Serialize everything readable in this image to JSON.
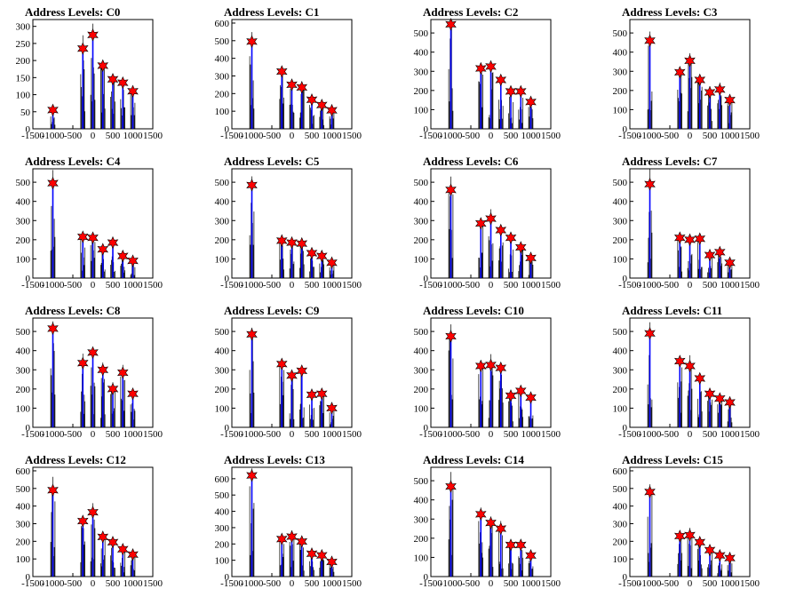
{
  "chart_data": [
    {
      "type": "histogram",
      "title": "Address Levels: C0",
      "xlim": [
        -1500,
        1500
      ],
      "ylim": [
        0,
        320
      ],
      "yticks": [
        0,
        50,
        100,
        150,
        200,
        250,
        300
      ],
      "xticks": [
        -1500,
        -1000,
        -500,
        0,
        500,
        1000,
        1500
      ],
      "peaks": [
        {
          "x": -1000,
          "y": 55
        },
        {
          "x": -250,
          "y": 235
        },
        {
          "x": 0,
          "y": 275
        },
        {
          "x": 250,
          "y": 185
        },
        {
          "x": 500,
          "y": 145
        },
        {
          "x": 750,
          "y": 135
        },
        {
          "x": 1000,
          "y": 110
        }
      ]
    },
    {
      "type": "histogram",
      "title": "Address Levels: C1",
      "xlim": [
        -1500,
        1500
      ],
      "ylim": [
        0,
        620
      ],
      "yticks": [
        0,
        100,
        200,
        300,
        400,
        500,
        600
      ],
      "xticks": [
        -1500,
        -1000,
        -500,
        0,
        500,
        1000,
        1500
      ],
      "peaks": [
        {
          "x": -1000,
          "y": 495
        },
        {
          "x": -250,
          "y": 325
        },
        {
          "x": 0,
          "y": 250
        },
        {
          "x": 250,
          "y": 235
        },
        {
          "x": 500,
          "y": 165
        },
        {
          "x": 750,
          "y": 135
        },
        {
          "x": 1000,
          "y": 105
        }
      ]
    },
    {
      "type": "histogram",
      "title": "Address Levels: C2",
      "xlim": [
        -1500,
        1500
      ],
      "ylim": [
        0,
        570
      ],
      "yticks": [
        0,
        100,
        200,
        300,
        400,
        500
      ],
      "xticks": [
        -1500,
        -1000,
        -500,
        0,
        500,
        1000,
        1500
      ],
      "peaks": [
        {
          "x": -1000,
          "y": 545
        },
        {
          "x": -250,
          "y": 315
        },
        {
          "x": 0,
          "y": 325
        },
        {
          "x": 250,
          "y": 255
        },
        {
          "x": 500,
          "y": 195
        },
        {
          "x": 750,
          "y": 195
        },
        {
          "x": 1000,
          "y": 140
        }
      ]
    },
    {
      "type": "histogram",
      "title": "Address Levels: C3",
      "xlim": [
        -1500,
        1500
      ],
      "ylim": [
        0,
        570
      ],
      "yticks": [
        0,
        100,
        200,
        300,
        400,
        500
      ],
      "xticks": [
        -1500,
        -1000,
        -500,
        0,
        500,
        1000,
        1500
      ],
      "peaks": [
        {
          "x": -1000,
          "y": 460
        },
        {
          "x": -250,
          "y": 295
        },
        {
          "x": 0,
          "y": 355
        },
        {
          "x": 250,
          "y": 255
        },
        {
          "x": 500,
          "y": 190
        },
        {
          "x": 750,
          "y": 205
        },
        {
          "x": 1000,
          "y": 150
        }
      ]
    },
    {
      "type": "histogram",
      "title": "Address Levels: C4",
      "xlim": [
        -1500,
        1500
      ],
      "ylim": [
        0,
        570
      ],
      "yticks": [
        0,
        100,
        200,
        300,
        400,
        500
      ],
      "xticks": [
        -1500,
        -1000,
        -500,
        0,
        500,
        1000,
        1500
      ],
      "peaks": [
        {
          "x": -1000,
          "y": 495
        },
        {
          "x": -250,
          "y": 215
        },
        {
          "x": 0,
          "y": 210
        },
        {
          "x": 250,
          "y": 150
        },
        {
          "x": 500,
          "y": 185
        },
        {
          "x": 750,
          "y": 115
        },
        {
          "x": 1000,
          "y": 90
        }
      ]
    },
    {
      "type": "histogram",
      "title": "Address Levels: C5",
      "xlim": [
        -1500,
        1500
      ],
      "ylim": [
        0,
        570
      ],
      "yticks": [
        0,
        100,
        200,
        300,
        400,
        500
      ],
      "xticks": [
        -1500,
        -1000,
        -500,
        0,
        500,
        1000,
        1500
      ],
      "peaks": [
        {
          "x": -1000,
          "y": 485
        },
        {
          "x": -250,
          "y": 195
        },
        {
          "x": 0,
          "y": 185
        },
        {
          "x": 250,
          "y": 180
        },
        {
          "x": 500,
          "y": 130
        },
        {
          "x": 750,
          "y": 115
        },
        {
          "x": 1000,
          "y": 80
        }
      ]
    },
    {
      "type": "histogram",
      "title": "Address Levels: C6",
      "xlim": [
        -1500,
        1500
      ],
      "ylim": [
        0,
        570
      ],
      "yticks": [
        0,
        100,
        200,
        300,
        400,
        500
      ],
      "xticks": [
        -1500,
        -1000,
        -500,
        0,
        500,
        1000,
        1500
      ],
      "peaks": [
        {
          "x": -1000,
          "y": 460
        },
        {
          "x": -250,
          "y": 285
        },
        {
          "x": 0,
          "y": 310
        },
        {
          "x": 250,
          "y": 250
        },
        {
          "x": 500,
          "y": 210
        },
        {
          "x": 750,
          "y": 160
        },
        {
          "x": 1000,
          "y": 105
        }
      ]
    },
    {
      "type": "histogram",
      "title": "Address Levels: C7",
      "xlim": [
        -1500,
        1500
      ],
      "ylim": [
        0,
        570
      ],
      "yticks": [
        0,
        100,
        200,
        300,
        400,
        500
      ],
      "xticks": [
        -1500,
        -1000,
        -500,
        0,
        500,
        1000,
        1500
      ],
      "peaks": [
        {
          "x": -1000,
          "y": 490
        },
        {
          "x": -250,
          "y": 210
        },
        {
          "x": 0,
          "y": 200
        },
        {
          "x": 250,
          "y": 205
        },
        {
          "x": 500,
          "y": 120
        },
        {
          "x": 750,
          "y": 135
        },
        {
          "x": 1000,
          "y": 80
        }
      ]
    },
    {
      "type": "histogram",
      "title": "Address Levels: C8",
      "xlim": [
        -1500,
        1500
      ],
      "ylim": [
        0,
        570
      ],
      "yticks": [
        0,
        100,
        200,
        300,
        400,
        500
      ],
      "xticks": [
        -1500,
        -1000,
        -500,
        0,
        500,
        1000,
        1500
      ],
      "peaks": [
        {
          "x": -1000,
          "y": 515
        },
        {
          "x": -250,
          "y": 335
        },
        {
          "x": 0,
          "y": 390
        },
        {
          "x": 250,
          "y": 300
        },
        {
          "x": 500,
          "y": 200
        },
        {
          "x": 750,
          "y": 285
        },
        {
          "x": 1000,
          "y": 175
        }
      ]
    },
    {
      "type": "histogram",
      "title": "Address Levels: C9",
      "xlim": [
        -1500,
        1500
      ],
      "ylim": [
        0,
        570
      ],
      "yticks": [
        0,
        100,
        200,
        300,
        400,
        500
      ],
      "xticks": [
        -1500,
        -1000,
        -500,
        0,
        500,
        1000,
        1500
      ],
      "peaks": [
        {
          "x": -1000,
          "y": 485
        },
        {
          "x": -250,
          "y": 330
        },
        {
          "x": 0,
          "y": 270
        },
        {
          "x": 250,
          "y": 295
        },
        {
          "x": 500,
          "y": 170
        },
        {
          "x": 750,
          "y": 175
        },
        {
          "x": 1000,
          "y": 100
        }
      ]
    },
    {
      "type": "histogram",
      "title": "Address Levels: C10",
      "xlim": [
        -1500,
        1500
      ],
      "ylim": [
        0,
        570
      ],
      "yticks": [
        0,
        100,
        200,
        300,
        400,
        500
      ],
      "xticks": [
        -1500,
        -1000,
        -500,
        0,
        500,
        1000,
        1500
      ],
      "peaks": [
        {
          "x": -1000,
          "y": 475
        },
        {
          "x": -250,
          "y": 320
        },
        {
          "x": 0,
          "y": 325
        },
        {
          "x": 250,
          "y": 310
        },
        {
          "x": 500,
          "y": 165
        },
        {
          "x": 750,
          "y": 190
        },
        {
          "x": 1000,
          "y": 155
        }
      ]
    },
    {
      "type": "histogram",
      "title": "Address Levels: C11",
      "xlim": [
        -1500,
        1500
      ],
      "ylim": [
        0,
        570
      ],
      "yticks": [
        0,
        100,
        200,
        300,
        400,
        500
      ],
      "xticks": [
        -1500,
        -1000,
        -500,
        0,
        500,
        1000,
        1500
      ],
      "peaks": [
        {
          "x": -1000,
          "y": 490
        },
        {
          "x": -250,
          "y": 345
        },
        {
          "x": 0,
          "y": 320
        },
        {
          "x": 250,
          "y": 255
        },
        {
          "x": 500,
          "y": 175
        },
        {
          "x": 750,
          "y": 150
        },
        {
          "x": 1000,
          "y": 130
        }
      ]
    },
    {
      "type": "histogram",
      "title": "Address Levels: C12",
      "xlim": [
        -1500,
        1500
      ],
      "ylim": [
        0,
        620
      ],
      "yticks": [
        0,
        100,
        200,
        300,
        400,
        500,
        600
      ],
      "xticks": [
        -1500,
        -1000,
        -500,
        0,
        500,
        1000,
        1500
      ],
      "peaks": [
        {
          "x": -1000,
          "y": 490
        },
        {
          "x": -250,
          "y": 315
        },
        {
          "x": 0,
          "y": 365
        },
        {
          "x": 250,
          "y": 225
        },
        {
          "x": 500,
          "y": 195
        },
        {
          "x": 750,
          "y": 155
        },
        {
          "x": 1000,
          "y": 125
        }
      ]
    },
    {
      "type": "histogram",
      "title": "Address Levels: C13",
      "xlim": [
        -1500,
        1500
      ],
      "ylim": [
        0,
        670
      ],
      "yticks": [
        0,
        100,
        200,
        300,
        400,
        500,
        600
      ],
      "xticks": [
        -1500,
        -1000,
        -500,
        0,
        500,
        1000,
        1500
      ],
      "peaks": [
        {
          "x": -1000,
          "y": 620
        },
        {
          "x": -250,
          "y": 230
        },
        {
          "x": 0,
          "y": 245
        },
        {
          "x": 250,
          "y": 215
        },
        {
          "x": 500,
          "y": 140
        },
        {
          "x": 750,
          "y": 130
        },
        {
          "x": 1000,
          "y": 90
        }
      ]
    },
    {
      "type": "histogram",
      "title": "Address Levels: C14",
      "xlim": [
        -1500,
        1500
      ],
      "ylim": [
        0,
        570
      ],
      "yticks": [
        0,
        100,
        200,
        300,
        400,
        500
      ],
      "xticks": [
        -1500,
        -1000,
        -500,
        0,
        500,
        1000,
        1500
      ],
      "peaks": [
        {
          "x": -1000,
          "y": 470
        },
        {
          "x": -250,
          "y": 325
        },
        {
          "x": 0,
          "y": 280
        },
        {
          "x": 250,
          "y": 250
        },
        {
          "x": 500,
          "y": 165
        },
        {
          "x": 750,
          "y": 165
        },
        {
          "x": 1000,
          "y": 110
        }
      ]
    },
    {
      "type": "histogram",
      "title": "Address Levels: C15",
      "xlim": [
        -1500,
        1500
      ],
      "ylim": [
        0,
        620
      ],
      "yticks": [
        0,
        100,
        200,
        300,
        400,
        500,
        600
      ],
      "xticks": [
        -1500,
        -1000,
        -500,
        0,
        500,
        1000,
        1500
      ],
      "peaks": [
        {
          "x": -1000,
          "y": 480
        },
        {
          "x": -250,
          "y": 230
        },
        {
          "x": 0,
          "y": 235
        },
        {
          "x": 250,
          "y": 195
        },
        {
          "x": 500,
          "y": 150
        },
        {
          "x": 750,
          "y": 120
        },
        {
          "x": 1000,
          "y": 105
        }
      ]
    }
  ],
  "colors": {
    "histogram_line": "#000000",
    "peak_bar": "#0000ff",
    "marker_fill": "#ff0000",
    "marker_stroke": "#000000",
    "axis": "#000000",
    "background": "#ffffff"
  }
}
